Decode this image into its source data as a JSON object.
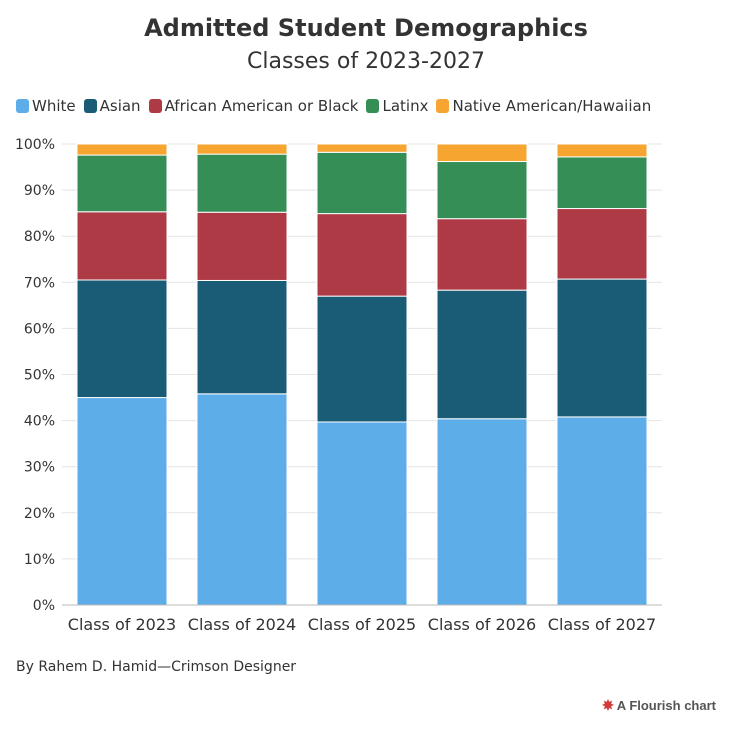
{
  "header": {
    "title": "Admitted Student Demographics",
    "subtitle": "Classes of 2023-2027"
  },
  "footer": {
    "credit": "By Rahem D. Hamid—Crimson Designer",
    "flourish_label": "A Flourish chart",
    "flourish_icon": "flourish-burst-icon"
  },
  "colors": {
    "white": "#5DADE8",
    "asian": "#1A5C75",
    "african_american": "#AE3A45",
    "latinx": "#358E55",
    "native": "#F6A530"
  },
  "chart_data": {
    "type": "bar",
    "stacked": true,
    "title": "Admitted Student Demographics",
    "subtitle": "Classes of 2023-2027",
    "categories": [
      "Class of 2023",
      "Class of 2024",
      "Class of 2025",
      "Class of 2026",
      "Class of 2027"
    ],
    "series": [
      {
        "name": "White",
        "color": "#5DADE8",
        "values": [
          45.0,
          45.8,
          39.7,
          40.4,
          40.8
        ]
      },
      {
        "name": "Asian",
        "color": "#1A5C75",
        "values": [
          25.5,
          24.6,
          27.3,
          27.9,
          29.9
        ]
      },
      {
        "name": "African American or Black",
        "color": "#AE3A45",
        "values": [
          14.8,
          14.8,
          17.9,
          15.5,
          15.3
        ]
      },
      {
        "name": "Latinx",
        "color": "#358E55",
        "values": [
          12.3,
          12.6,
          13.3,
          12.4,
          11.2
        ]
      },
      {
        "name": "Native American/Hawaiian",
        "color": "#F6A530",
        "values": [
          2.4,
          2.2,
          1.8,
          3.8,
          2.8
        ]
      }
    ],
    "y_ticks": [
      "0%",
      "10%",
      "20%",
      "30%",
      "40%",
      "50%",
      "60%",
      "70%",
      "80%",
      "90%",
      "100%"
    ],
    "ylim": [
      0,
      100
    ],
    "grid": true,
    "legend_position": "top-left"
  }
}
